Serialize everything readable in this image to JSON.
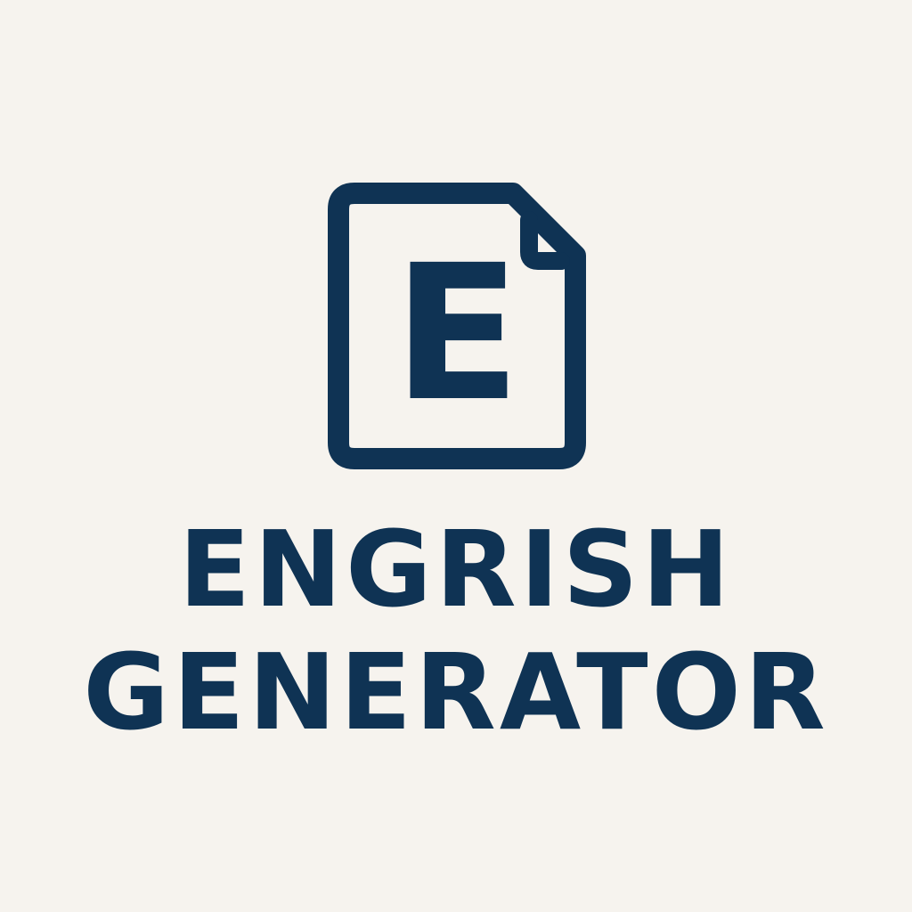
{
  "logo": {
    "icon_name": "document-e-icon",
    "icon_letter": "E",
    "color": "#0f3354",
    "background": "#f6f3ee"
  },
  "title": {
    "line1": "ENGRISH",
    "line2": "GENERATOR"
  }
}
